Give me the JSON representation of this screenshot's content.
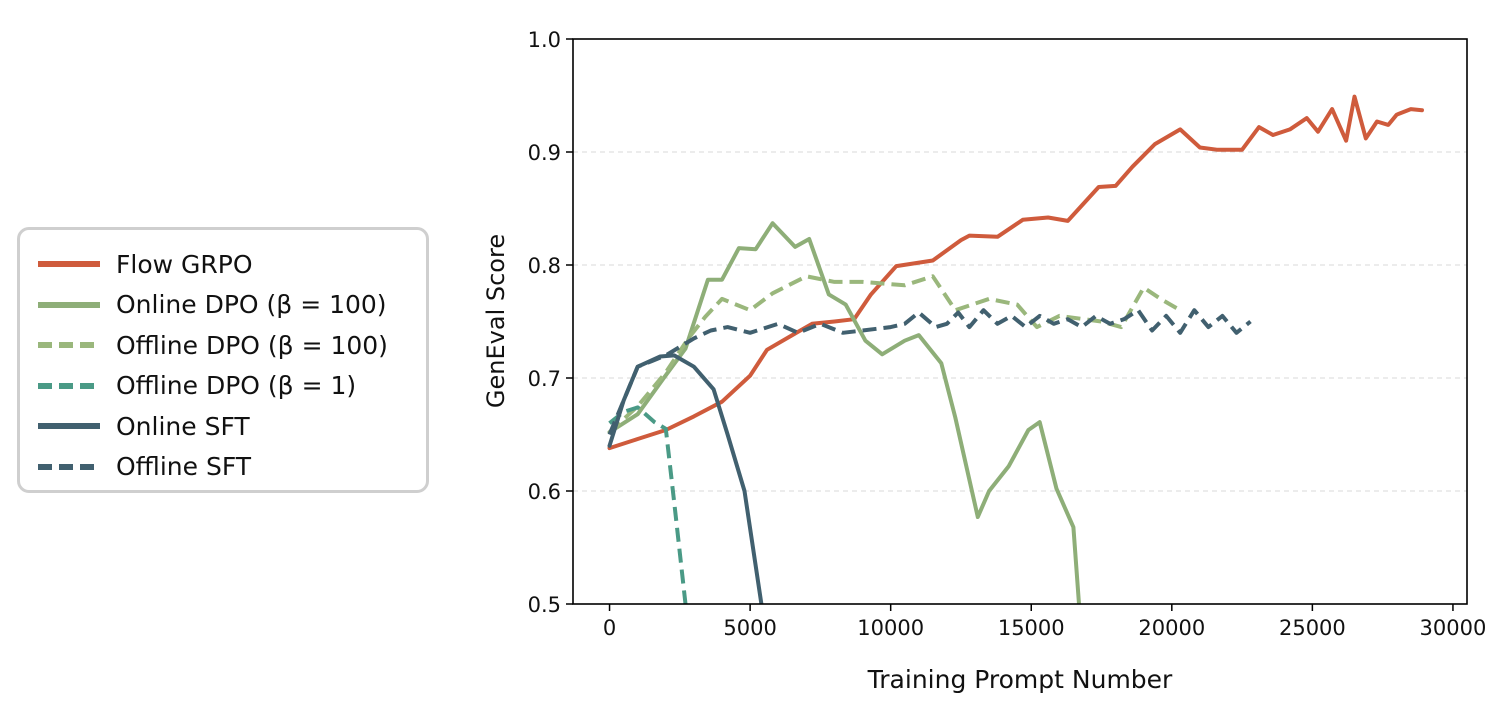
{
  "chart_data": {
    "type": "line",
    "xlabel": "Training Prompt Number",
    "ylabel": "GenEval Score",
    "xlim": [
      -1300,
      30500
    ],
    "ylim": [
      0.5,
      1.0
    ],
    "xticks": [
      "0",
      "5000",
      "10000",
      "15000",
      "20000",
      "25000",
      "30000"
    ],
    "yticks": [
      "0.5",
      "0.6",
      "0.7",
      "0.8",
      "0.9",
      "1.0"
    ],
    "grid": "horizontal dashed",
    "legend": {
      "placement": "left-outside"
    },
    "series": [
      {
        "name": "Flow GRPO",
        "color": "#cf5b3c",
        "style": "solid",
        "points": [
          [
            0,
            0.638
          ],
          [
            1000,
            0.646
          ],
          [
            2000,
            0.654
          ],
          [
            3000,
            0.666
          ],
          [
            4000,
            0.679
          ],
          [
            5000,
            0.702
          ],
          [
            5600,
            0.725
          ],
          [
            6500,
            0.738
          ],
          [
            7200,
            0.748
          ],
          [
            8000,
            0.75
          ],
          [
            8700,
            0.752
          ],
          [
            9300,
            0.774
          ],
          [
            10200,
            0.799
          ],
          [
            11500,
            0.804
          ],
          [
            12500,
            0.822
          ],
          [
            12800,
            0.826
          ],
          [
            13800,
            0.825
          ],
          [
            14700,
            0.84
          ],
          [
            15600,
            0.842
          ],
          [
            16300,
            0.839
          ],
          [
            17400,
            0.869
          ],
          [
            18000,
            0.87
          ],
          [
            18600,
            0.887
          ],
          [
            19400,
            0.907
          ],
          [
            20300,
            0.92
          ],
          [
            21000,
            0.904
          ],
          [
            21600,
            0.902
          ],
          [
            22500,
            0.902
          ],
          [
            23100,
            0.922
          ],
          [
            23600,
            0.915
          ],
          [
            24200,
            0.92
          ],
          [
            24800,
            0.93
          ],
          [
            25200,
            0.918
          ],
          [
            25700,
            0.938
          ],
          [
            26200,
            0.91
          ],
          [
            26500,
            0.949
          ],
          [
            26900,
            0.912
          ],
          [
            27300,
            0.927
          ],
          [
            27700,
            0.924
          ],
          [
            28000,
            0.933
          ],
          [
            28500,
            0.938
          ],
          [
            28900,
            0.937
          ]
        ]
      },
      {
        "name": "Online DPO (β = 100)",
        "color": "#8eae78",
        "style": "solid",
        "points": [
          [
            0,
            0.652
          ],
          [
            1000,
            0.668
          ],
          [
            1900,
            0.699
          ],
          [
            2700,
            0.726
          ],
          [
            3500,
            0.787
          ],
          [
            4000,
            0.787
          ],
          [
            4600,
            0.815
          ],
          [
            5200,
            0.814
          ],
          [
            5800,
            0.837
          ],
          [
            6600,
            0.816
          ],
          [
            7100,
            0.823
          ],
          [
            7800,
            0.774
          ],
          [
            8400,
            0.765
          ],
          [
            9100,
            0.733
          ],
          [
            9700,
            0.721
          ],
          [
            10500,
            0.733
          ],
          [
            11000,
            0.738
          ],
          [
            11800,
            0.713
          ],
          [
            12300,
            0.665
          ],
          [
            13100,
            0.577
          ],
          [
            13500,
            0.6
          ],
          [
            14200,
            0.622
          ],
          [
            14900,
            0.654
          ],
          [
            15300,
            0.661
          ],
          [
            15900,
            0.602
          ],
          [
            16500,
            0.568
          ],
          [
            16700,
            0.5
          ]
        ]
      },
      {
        "name": "Offline DPO (β = 100)",
        "color": "#9ab77c",
        "style": "dashed",
        "points": [
          [
            0,
            0.652
          ],
          [
            1000,
            0.675
          ],
          [
            2000,
            0.705
          ],
          [
            2800,
            0.735
          ],
          [
            3400,
            0.754
          ],
          [
            4000,
            0.77
          ],
          [
            5000,
            0.76
          ],
          [
            5800,
            0.775
          ],
          [
            7000,
            0.79
          ],
          [
            8000,
            0.785
          ],
          [
            9000,
            0.785
          ],
          [
            10500,
            0.782
          ],
          [
            11500,
            0.79
          ],
          [
            12300,
            0.76
          ],
          [
            13500,
            0.77
          ],
          [
            14500,
            0.765
          ],
          [
            15200,
            0.745
          ],
          [
            16000,
            0.755
          ],
          [
            17500,
            0.75
          ],
          [
            18200,
            0.745
          ],
          [
            19000,
            0.78
          ],
          [
            19600,
            0.77
          ],
          [
            20300,
            0.76
          ]
        ]
      },
      {
        "name": "Offline DPO (β = 1)",
        "color": "#4a9a86",
        "style": "dashed",
        "points": [
          [
            0,
            0.66
          ],
          [
            500,
            0.67
          ],
          [
            1000,
            0.674
          ],
          [
            1600,
            0.661
          ],
          [
            2000,
            0.655
          ],
          [
            2300,
            0.59
          ],
          [
            2700,
            0.5
          ]
        ]
      },
      {
        "name": "Online SFT",
        "color": "#41606f",
        "style": "solid",
        "points": [
          [
            0,
            0.64
          ],
          [
            500,
            0.68
          ],
          [
            1000,
            0.71
          ],
          [
            1800,
            0.719
          ],
          [
            2300,
            0.72
          ],
          [
            3000,
            0.71
          ],
          [
            3700,
            0.69
          ],
          [
            4200,
            0.65
          ],
          [
            4800,
            0.6
          ],
          [
            5400,
            0.5
          ]
        ]
      },
      {
        "name": "Offline SFT",
        "color": "#41606f",
        "style": "dashed",
        "points": [
          [
            0,
            0.65
          ],
          [
            500,
            0.68
          ],
          [
            1000,
            0.71
          ],
          [
            1500,
            0.715
          ],
          [
            2000,
            0.72
          ],
          [
            3000,
            0.735
          ],
          [
            3600,
            0.742
          ],
          [
            4200,
            0.745
          ],
          [
            5000,
            0.74
          ],
          [
            6000,
            0.748
          ],
          [
            6700,
            0.74
          ],
          [
            7500,
            0.748
          ],
          [
            8300,
            0.74
          ],
          [
            9000,
            0.742
          ],
          [
            10000,
            0.745
          ],
          [
            10500,
            0.748
          ],
          [
            11000,
            0.758
          ],
          [
            11600,
            0.745
          ],
          [
            12000,
            0.748
          ],
          [
            12400,
            0.758
          ],
          [
            12800,
            0.745
          ],
          [
            13300,
            0.76
          ],
          [
            13800,
            0.748
          ],
          [
            14300,
            0.755
          ],
          [
            14800,
            0.745
          ],
          [
            15300,
            0.755
          ],
          [
            15800,
            0.748
          ],
          [
            16300,
            0.752
          ],
          [
            16800,
            0.745
          ],
          [
            17300,
            0.755
          ],
          [
            17800,
            0.748
          ],
          [
            18300,
            0.752
          ],
          [
            18800,
            0.76
          ],
          [
            19300,
            0.742
          ],
          [
            19800,
            0.755
          ],
          [
            20300,
            0.74
          ],
          [
            20800,
            0.76
          ],
          [
            21300,
            0.745
          ],
          [
            21800,
            0.755
          ],
          [
            22300,
            0.74
          ],
          [
            22800,
            0.75
          ]
        ]
      }
    ]
  }
}
